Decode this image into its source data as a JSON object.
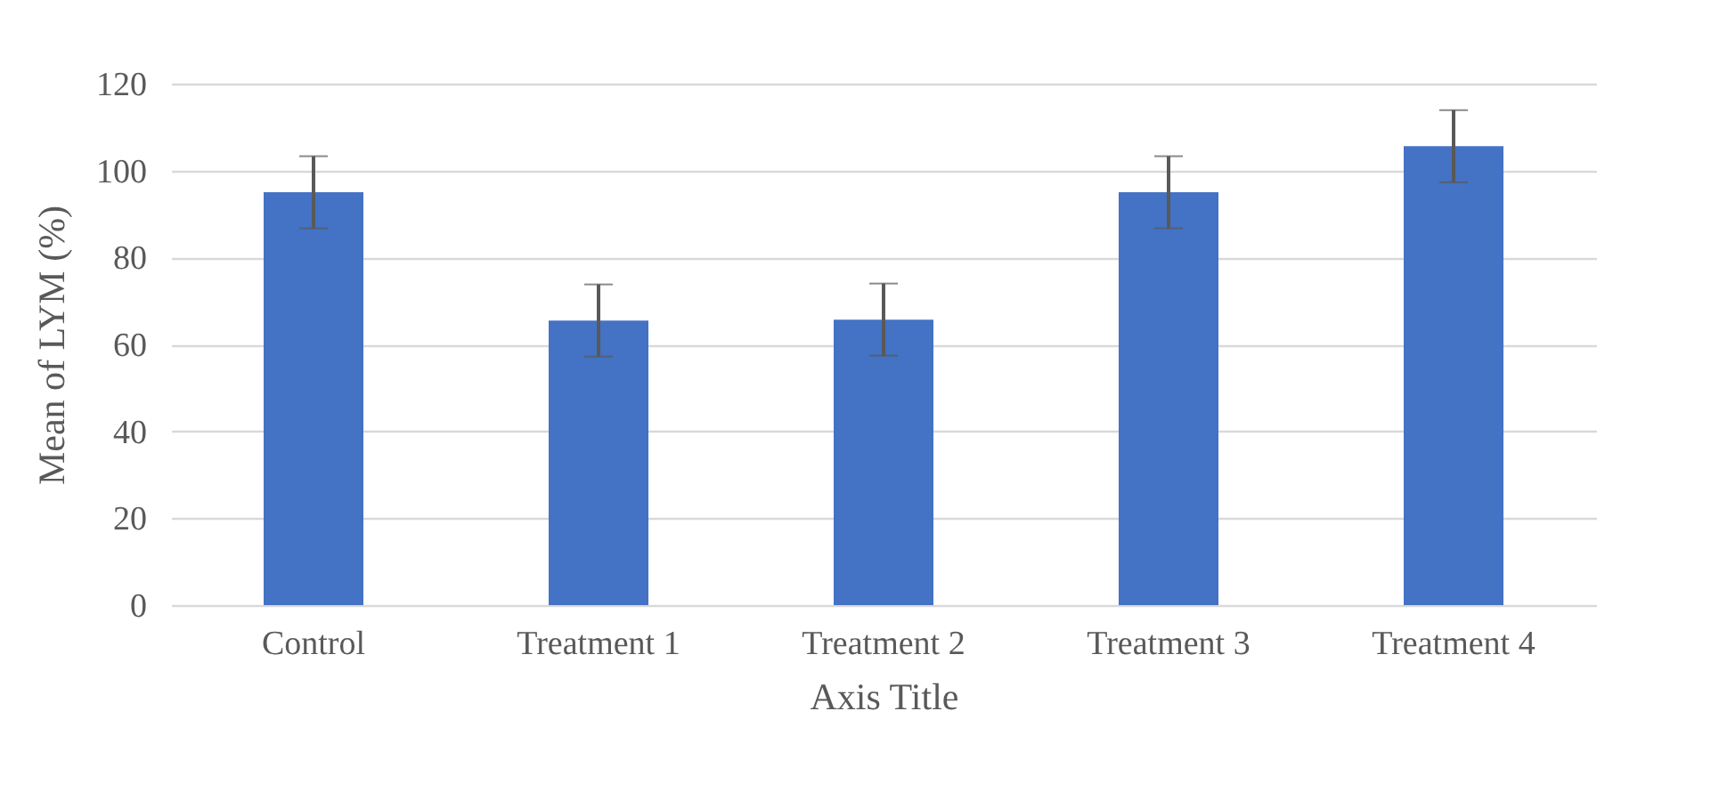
{
  "chart_data": {
    "type": "bar",
    "xlabel": "Axis Title",
    "ylabel": "Mean of LYM (%)",
    "categories": [
      "Control",
      "Treatment 1",
      "Treatment 2",
      "Treatment 3",
      "Treatment 4"
    ],
    "values": [
      95,
      65.5,
      65.7,
      95,
      105.6
    ],
    "errors": [
      8.3,
      8.3,
      8.3,
      8.3,
      8.3
    ],
    "color": "#4472c4",
    "ylim": [
      0,
      120
    ],
    "yticks": [
      0,
      20,
      40,
      60,
      80,
      100,
      120
    ],
    "grid": "y"
  }
}
